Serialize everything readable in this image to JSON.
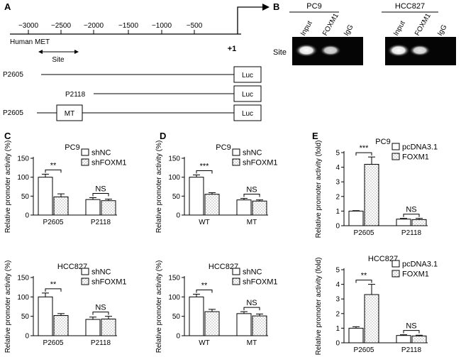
{
  "panel_labels": [
    "A",
    "B",
    "C",
    "D",
    "E"
  ],
  "panel_a": {
    "ruler_ticks": [
      "−3000",
      "−2500",
      "−2000",
      "−1500",
      "−1000",
      "−500"
    ],
    "gene_label": "Human MET",
    "tss_label": "+1",
    "site_label": "Site",
    "constructs": [
      {
        "name": "P2605",
        "reporter": "Luc",
        "mutation": ""
      },
      {
        "name": "P2118",
        "reporter": "Luc",
        "mutation": ""
      },
      {
        "name": "P2605",
        "reporter": "Luc",
        "mutation": "MT"
      }
    ]
  },
  "panel_b": {
    "blots": [
      {
        "title": "PC9",
        "lanes": [
          "Input",
          "FOXM1",
          "IgG"
        ]
      },
      {
        "title": "HCC827",
        "lanes": [
          "Input",
          "FOXM1",
          "IgG"
        ]
      }
    ],
    "row_label": "Site"
  },
  "chart_data": [
    {
      "id": "C1",
      "type": "bar",
      "title": "PC9",
      "ylabel": "Relative promoter activity (%)",
      "ylim": [
        0,
        150
      ],
      "yticks": [
        "0",
        "50",
        "100",
        "150"
      ],
      "categories": [
        "P2605",
        "P2118"
      ],
      "series": [
        {
          "name": "shNC",
          "values": [
            100,
            41
          ],
          "errors": [
            8,
            5
          ],
          "fill": "white"
        },
        {
          "name": "shFOXM1",
          "values": [
            48,
            38
          ],
          "errors": [
            8,
            4
          ],
          "fill": "dotted"
        }
      ],
      "significance": [
        "**",
        "NS"
      ]
    },
    {
      "id": "D1",
      "type": "bar",
      "title": "PC9",
      "ylabel": "Relative promoter activity (%)",
      "ylim": [
        0,
        150
      ],
      "yticks": [
        "0",
        "50",
        "100",
        "150"
      ],
      "categories": [
        "WT",
        "MT"
      ],
      "series": [
        {
          "name": "shNC",
          "values": [
            100,
            40
          ],
          "errors": [
            6,
            4
          ],
          "fill": "white"
        },
        {
          "name": "shFOXM1",
          "values": [
            55,
            37
          ],
          "errors": [
            4,
            3
          ],
          "fill": "dotted"
        }
      ],
      "significance": [
        "***",
        "NS"
      ]
    },
    {
      "id": "E1",
      "type": "bar",
      "title": "PC9",
      "ylabel": "Relative promoter activity (fold)",
      "ylim": [
        0,
        5
      ],
      "yticks": [
        "0",
        "1",
        "2",
        "3",
        "4",
        "5"
      ],
      "categories": [
        "P2605",
        "P2118"
      ],
      "series": [
        {
          "name": "pcDNA3.1",
          "values": [
            1.0,
            0.45
          ],
          "errors": [
            0.03,
            0.05
          ],
          "fill": "white"
        },
        {
          "name": "FOXM1",
          "values": [
            4.2,
            0.42
          ],
          "errors": [
            0.5,
            0.08
          ],
          "fill": "dotted"
        }
      ],
      "significance": [
        "***",
        "NS"
      ]
    },
    {
      "id": "C2",
      "type": "bar",
      "title": "HCC827",
      "ylabel": "Relative promoter activity (%)",
      "ylim": [
        0,
        150
      ],
      "yticks": [
        "0",
        "50",
        "100",
        "150"
      ],
      "categories": [
        "P2605",
        "P2118"
      ],
      "series": [
        {
          "name": "shNC",
          "values": [
            100,
            42
          ],
          "errors": [
            10,
            6
          ],
          "fill": "white"
        },
        {
          "name": "shFOXM1",
          "values": [
            52,
            43
          ],
          "errors": [
            5,
            7
          ],
          "fill": "dotted"
        }
      ],
      "significance": [
        "**",
        "NS"
      ]
    },
    {
      "id": "D2",
      "type": "bar",
      "title": "HCC827",
      "ylabel": "Relative promoter activity (%)",
      "ylim": [
        0,
        150
      ],
      "yticks": [
        "0",
        "50",
        "100",
        "150"
      ],
      "categories": [
        "WT",
        "MT"
      ],
      "series": [
        {
          "name": "shNC",
          "values": [
            100,
            57
          ],
          "errors": [
            7,
            5
          ],
          "fill": "white"
        },
        {
          "name": "shFOXM1",
          "values": [
            62,
            51
          ],
          "errors": [
            6,
            5
          ],
          "fill": "dotted"
        }
      ],
      "significance": [
        "**",
        "NS"
      ]
    },
    {
      "id": "E2",
      "type": "bar",
      "title": "HCC827",
      "ylabel": "Relative promoter activity (fold)",
      "ylim": [
        0,
        5
      ],
      "yticks": [
        "0",
        "1",
        "2",
        "3",
        "4",
        "5"
      ],
      "categories": [
        "P2605",
        "P2118"
      ],
      "series": [
        {
          "name": "pcDNA3.1",
          "values": [
            1.0,
            0.5
          ],
          "errors": [
            0.1,
            0.05
          ],
          "fill": "white"
        },
        {
          "name": "FOXM1",
          "values": [
            3.3,
            0.47
          ],
          "errors": [
            0.7,
            0.05
          ],
          "fill": "dotted"
        }
      ],
      "significance": [
        "**",
        "NS"
      ]
    }
  ]
}
